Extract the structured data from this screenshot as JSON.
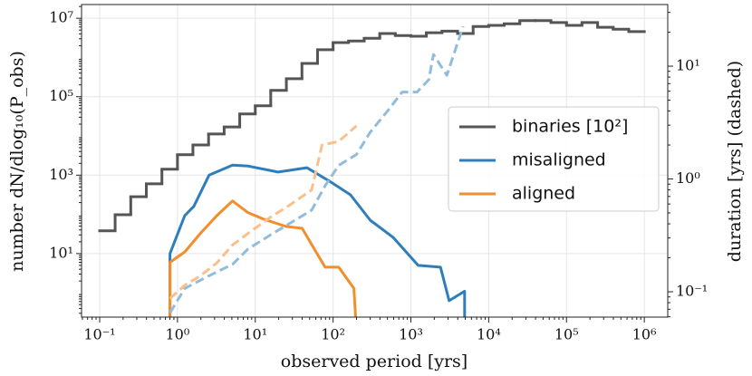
{
  "chart_data": {
    "type": "line",
    "xlabel": "observed period [yrs]",
    "ylabel": "number dN/dlog₁₀(P_obs)",
    "y2label": "duration [yrs] (dashed)",
    "xscale": "log",
    "yscale": "log",
    "y2scale": "log",
    "grid": true,
    "legend": "right",
    "xlim": [
      0.0585,
      2000000
    ],
    "ylim": [
      0.24,
      22400000
    ],
    "y2lim": [
      0.0596,
      35.2
    ],
    "xticks": [
      {
        "value": 0.1,
        "label": "10⁻¹"
      },
      {
        "value": 1,
        "label": "10⁰"
      },
      {
        "value": 10,
        "label": "10¹"
      },
      {
        "value": 100,
        "label": "10²"
      },
      {
        "value": 1000,
        "label": "10³"
      },
      {
        "value": 10000,
        "label": "10⁴"
      },
      {
        "value": 100000,
        "label": "10⁵"
      },
      {
        "value": 1000000,
        "label": "10⁶"
      }
    ],
    "yticks": [
      {
        "value": 10,
        "label": "10¹"
      },
      {
        "value": 1000,
        "label": "10³"
      },
      {
        "value": 100000,
        "label": "10⁵"
      },
      {
        "value": 10000000,
        "label": "10⁷"
      }
    ],
    "y2ticks": [
      {
        "value": 0.1,
        "label": "10⁻¹"
      },
      {
        "value": 1,
        "label": "10⁰"
      },
      {
        "value": 10,
        "label": "10¹"
      }
    ],
    "series": [
      {
        "name": "binaries [10²]",
        "color": "#555555",
        "drawstyle": "step",
        "bins": [
          0.1,
          0.158,
          0.251,
          0.398,
          0.631,
          1,
          1.58,
          2.51,
          3.98,
          6.31,
          10,
          15.8,
          25.1,
          39.8,
          63.1,
          100,
          158,
          251,
          398,
          631,
          1000,
          1580,
          2510,
          3980,
          6310,
          10000,
          15800,
          25100,
          39800,
          63100,
          100000,
          158000,
          251000,
          398000,
          631000,
          1000000
        ],
        "values": [
          38,
          98,
          282,
          603,
          1413,
          3311,
          5888,
          11220,
          16982,
          36308,
          58884,
          144544,
          288403,
          707946,
          1580000,
          2400000,
          2630000,
          3090000,
          4070000,
          3630000,
          3470000,
          4270000,
          4680000,
          4070000,
          6170000,
          6610000,
          7240000,
          8710000,
          8710000,
          7760000,
          6610000,
          7760000,
          5890000,
          5250000,
          4570000
        ]
      },
      {
        "name": "misaligned",
        "color": "#2f7ebc",
        "x": [
          0.8,
          0.8,
          1.24,
          1.62,
          2.55,
          5.1,
          8.1,
          19.6,
          46,
          90,
          167,
          300,
          590,
          1240,
          2400,
          3100,
          4900,
          4900
        ],
        "values": [
          0.1,
          10,
          93,
          160,
          1000,
          1800,
          1700,
          1200,
          1550,
          700,
          316,
          71,
          26,
          5,
          4.5,
          0.63,
          1.1,
          0.1
        ]
      },
      {
        "name": "aligned",
        "color": "#f28e2b",
        "x": [
          0.8,
          0.8,
          1.24,
          1.95,
          3.2,
          5.1,
          8.1,
          12.7,
          25,
          40,
          53,
          79,
          118,
          185,
          200
        ],
        "values": [
          0.1,
          6,
          11,
          32,
          93,
          220,
          110,
          76,
          49,
          44,
          17,
          4.5,
          4.5,
          1.3,
          0.1
        ]
      },
      {
        "color": "#92bcdc",
        "axis": "y2",
        "linestyle": "dashed",
        "x": [
          0.8,
          1.24,
          1.95,
          3.2,
          5.1,
          8.1,
          15.8,
          27,
          53,
          79,
          118,
          200,
          300,
          515,
          770,
          1200,
          1700,
          1950,
          2900,
          4700
        ],
        "values": [
          0.065,
          0.107,
          0.126,
          0.15,
          0.175,
          0.24,
          0.32,
          0.4,
          0.53,
          0.87,
          1.32,
          1.65,
          2.6,
          4.1,
          5.9,
          5.9,
          7.6,
          12.7,
          8.3,
          22.5
        ]
      },
      {
        "color": "#f9c08c",
        "axis": "y2",
        "linestyle": "dashed",
        "x": [
          0.8,
          1.24,
          1.95,
          3.2,
          5.1,
          8.1,
          15.8,
          27,
          53,
          72,
          118,
          200
        ],
        "values": [
          0.087,
          0.114,
          0.138,
          0.18,
          0.26,
          0.33,
          0.46,
          0.58,
          0.8,
          2.0,
          2.15,
          2.96
        ]
      }
    ]
  }
}
